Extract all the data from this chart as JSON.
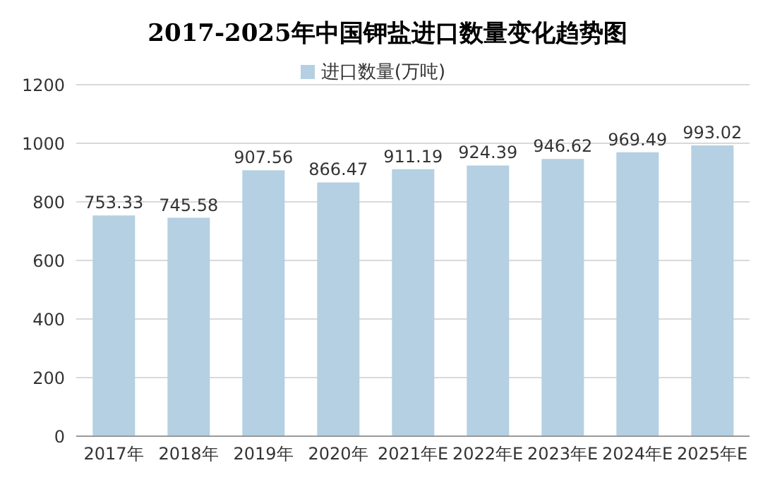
{
  "chart_data": {
    "type": "bar",
    "title": "2017-2025年中国钾盐进口数量变化趋势图",
    "categories": [
      "2017年",
      "2018年",
      "2019年",
      "2020年",
      "2021年E",
      "2022年E",
      "2023年E",
      "2024年E",
      "2025年E"
    ],
    "series": [
      {
        "name": "进口数量(万吨)",
        "color": "#b4d0e2",
        "values": [
          753.33,
          745.58,
          907.56,
          866.47,
          911.19,
          924.39,
          946.62,
          969.49,
          993.02
        ]
      }
    ],
    "ylim": [
      0,
      1200
    ],
    "yticks": [
      0,
      200,
      400,
      600,
      800,
      1000,
      1200
    ],
    "grid": "y",
    "legend": "top",
    "data_labels": true
  }
}
